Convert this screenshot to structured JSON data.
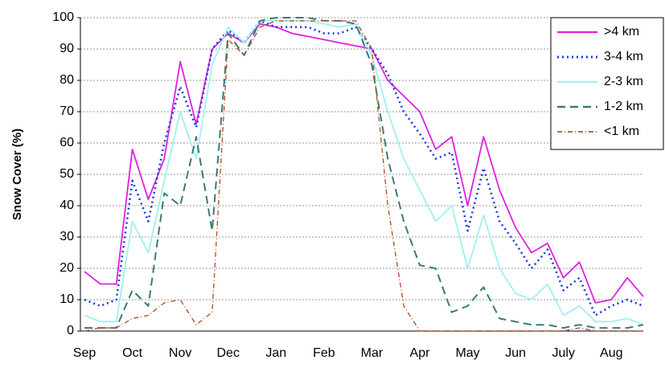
{
  "chart_data": {
    "type": "line",
    "ylabel": "Snow Cover (%)",
    "categories": [
      "Sep",
      null,
      null,
      "Oct",
      null,
      null,
      "Nov",
      null,
      null,
      "Dec",
      null,
      null,
      "Jan",
      null,
      null,
      "Feb",
      null,
      null,
      "Mar",
      null,
      null,
      "Apr",
      null,
      null,
      "May",
      null,
      null,
      "Jun",
      null,
      null,
      "July",
      null,
      null,
      "Aug",
      null,
      null
    ],
    "series": [
      {
        "name": ">4 km",
        "color": "#e020e0",
        "linestyle": "solid",
        "values": [
          19,
          15,
          15,
          58,
          42,
          55,
          86,
          66,
          90,
          95,
          92,
          98,
          97,
          95,
          94,
          93,
          92,
          91,
          90,
          80,
          75,
          70,
          58,
          62,
          40,
          62,
          45,
          33,
          25,
          28,
          17,
          22,
          9,
          10,
          17,
          11
        ]
      },
      {
        "name": "3-4 km",
        "color": "#1a3ad8",
        "linestyle": "dotted",
        "values": [
          10,
          8,
          10,
          48,
          35,
          60,
          78,
          65,
          90,
          96,
          92,
          99,
          97,
          97,
          97,
          95,
          95,
          97,
          90,
          82,
          70,
          63,
          55,
          57,
          32,
          52,
          35,
          28,
          20,
          26,
          13,
          17,
          5,
          8,
          10,
          8
        ]
      },
      {
        "name": "2-3 km",
        "color": "#9ff0f0",
        "linestyle": "solid",
        "values": [
          5,
          3,
          3,
          35,
          25,
          48,
          70,
          55,
          85,
          97,
          92,
          99,
          99,
          99,
          99,
          98,
          97,
          98,
          88,
          70,
          55,
          45,
          35,
          40,
          20,
          37,
          20,
          12,
          10,
          15,
          5,
          8,
          3,
          3,
          4,
          2
        ]
      },
      {
        "name": "1-2 km",
        "color": "#3a7a78",
        "linestyle": "dashed",
        "values": [
          1,
          1,
          1,
          13,
          8,
          44,
          40,
          62,
          32,
          95,
          88,
          99,
          100,
          100,
          100,
          99,
          99,
          98,
          85,
          55,
          35,
          21,
          20,
          6,
          8,
          14,
          4,
          3,
          2,
          2,
          1,
          2,
          1,
          1,
          1,
          2
        ]
      },
      {
        "name": "<1 km",
        "color": "#b8542a",
        "linestyle": "dashdot",
        "values": [
          0,
          1,
          1,
          4,
          5,
          9,
          10,
          2,
          6,
          93,
          88,
          97,
          99,
          99,
          99,
          99,
          99,
          99,
          90,
          40,
          8,
          0,
          0,
          0,
          0,
          0,
          0,
          0,
          0,
          0,
          0,
          1,
          0,
          0,
          0,
          0
        ]
      }
    ],
    "ylim": [
      0,
      100
    ],
    "yticks": [
      0,
      10,
      20,
      30,
      40,
      50,
      60,
      70,
      80,
      90,
      100
    ],
    "grid": true,
    "legend": "upper right"
  }
}
